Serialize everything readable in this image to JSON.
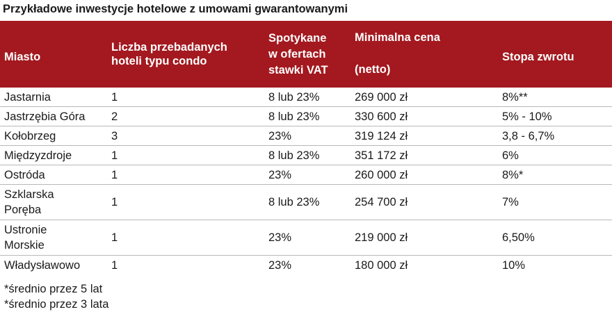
{
  "title": "Przykładowe inwestycje hotelowe z umowami gwarantowanymi",
  "headers": {
    "city": "Miasto",
    "hotels_line1": "Liczba przebadanych",
    "hotels_line2": "hoteli typu condo",
    "vat_line1": "Spotykane",
    "vat_line2": "w ofertach",
    "vat_line3": "stawki VAT",
    "price_line1": "Minimalna cena",
    "price_line2": "(netto)",
    "rate": "Stopa zwrotu"
  },
  "rows": [
    {
      "city": "Jastarnia",
      "hotels": "1",
      "vat": "8 lub 23%",
      "price": "269 000 zł",
      "rate": "8%**"
    },
    {
      "city": "Jastrzębia Góra",
      "hotels": "2",
      "vat": "8 lub 23%",
      "price": "330 600 zł",
      "rate": "5% - 10%"
    },
    {
      "city": "Kołobrzeg",
      "hotels": "3",
      "vat": "23%",
      "price": "319 124 zł",
      "rate": "3,8 - 6,7%"
    },
    {
      "city": "Międzyzdroje",
      "hotels": "1",
      "vat": "8 lub 23%",
      "price": "351 172 zł",
      "rate": "6%"
    },
    {
      "city": "Ostróda",
      "hotels": "1",
      "vat": "23%",
      "price": "260 000 zł",
      "rate": "8%*"
    },
    {
      "city_line1": "Szklarska",
      "city_line2": "Poręba",
      "hotels": "1",
      "vat": "8 lub 23%",
      "price": "254 700 zł",
      "rate": "7%"
    },
    {
      "city_line1": "Ustronie",
      "city_line2": "Morskie",
      "hotels": "1",
      "vat": "23%",
      "price": "219 000 zł",
      "rate": "6,50%"
    },
    {
      "city": "Władysławowo",
      "hotels": "1",
      "vat": "23%",
      "price": "180 000 zł",
      "rate": "10%"
    }
  ],
  "notes": [
    "*średnio przez 5 lat",
    "*średnio przez 3 lata"
  ],
  "colors": {
    "header_bg": "#a3191f",
    "header_text": "#ffffff",
    "row_border": "#b8b8b8"
  }
}
